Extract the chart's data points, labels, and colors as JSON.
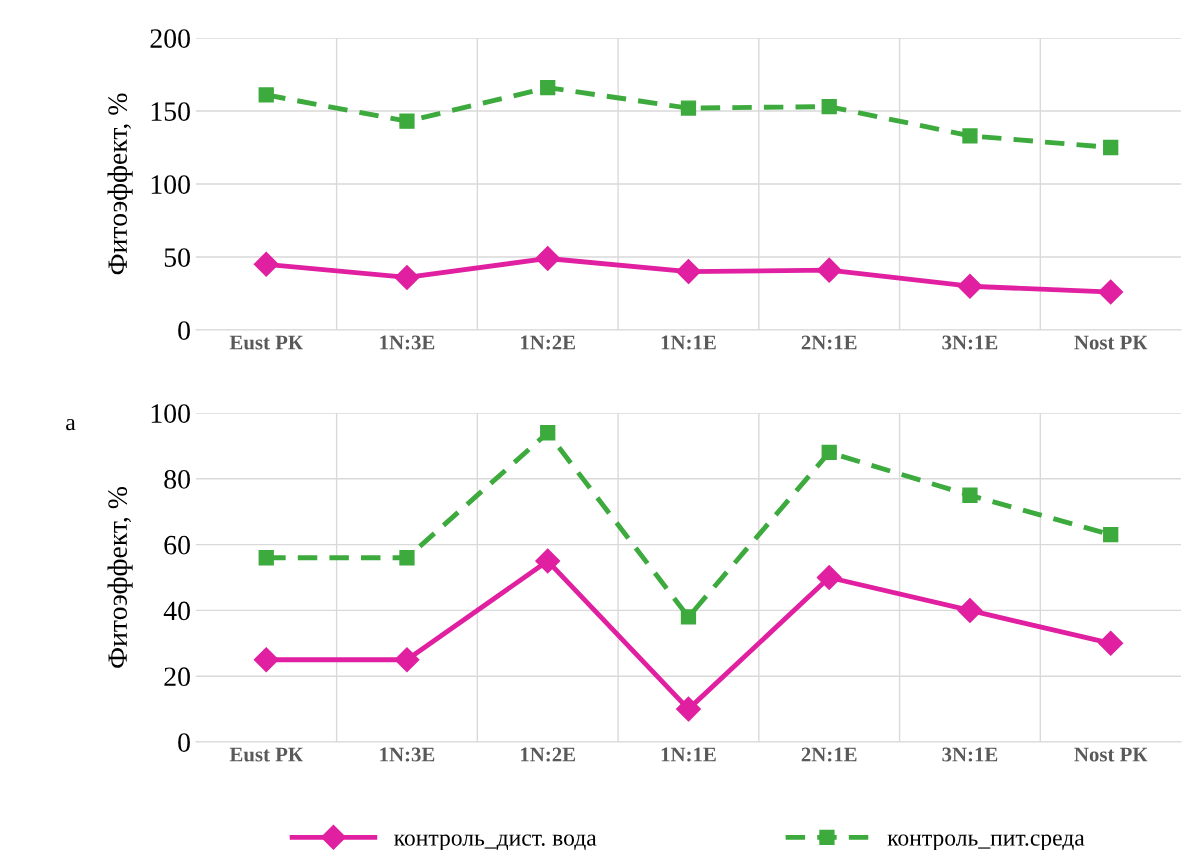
{
  "chart_data": [
    {
      "type": "line",
      "ylabel": "Фитоэффект, %",
      "categories": [
        "Eust РК",
        "1N:3E",
        "1N:2E",
        "1N:1E",
        "2N:1E",
        "3N:1E",
        "Nost РК"
      ],
      "ylim": [
        0,
        200
      ],
      "yticks": [
        0,
        50,
        100,
        150,
        200
      ],
      "grid": true,
      "legend": false,
      "annotations": [
        "а"
      ],
      "series": [
        {
          "color": "#e020a0",
          "marker": "diamond",
          "line_style": "solid",
          "values": [
            45,
            36,
            49,
            40,
            41,
            30,
            26
          ]
        },
        {
          "color": "#3daa3d",
          "marker": "square",
          "line_style": "dashed",
          "values": [
            161,
            143,
            166,
            152,
            153,
            133,
            125
          ]
        }
      ]
    },
    {
      "type": "line",
      "ylabel": "Фитоэффект, %",
      "categories": [
        "Eust РК",
        "1N:3E",
        "1N:2E",
        "1N:1E",
        "2N:1E",
        "3N:1E",
        "Nost РК"
      ],
      "ylim": [
        0,
        100
      ],
      "yticks": [
        0,
        20,
        40,
        60,
        80,
        100
      ],
      "grid": true,
      "legend": "bottom",
      "series": [
        {
          "name": "контроль_дист. вода",
          "color": "#e020a0",
          "marker": "diamond",
          "line_style": "solid",
          "values": [
            25,
            25,
            55,
            10,
            50,
            40,
            30
          ]
        },
        {
          "name": "контроль_пит.среда",
          "color": "#3daa3d",
          "marker": "square",
          "line_style": "dashed",
          "values": [
            56,
            56,
            94,
            38,
            88,
            75,
            63
          ]
        }
      ]
    }
  ]
}
